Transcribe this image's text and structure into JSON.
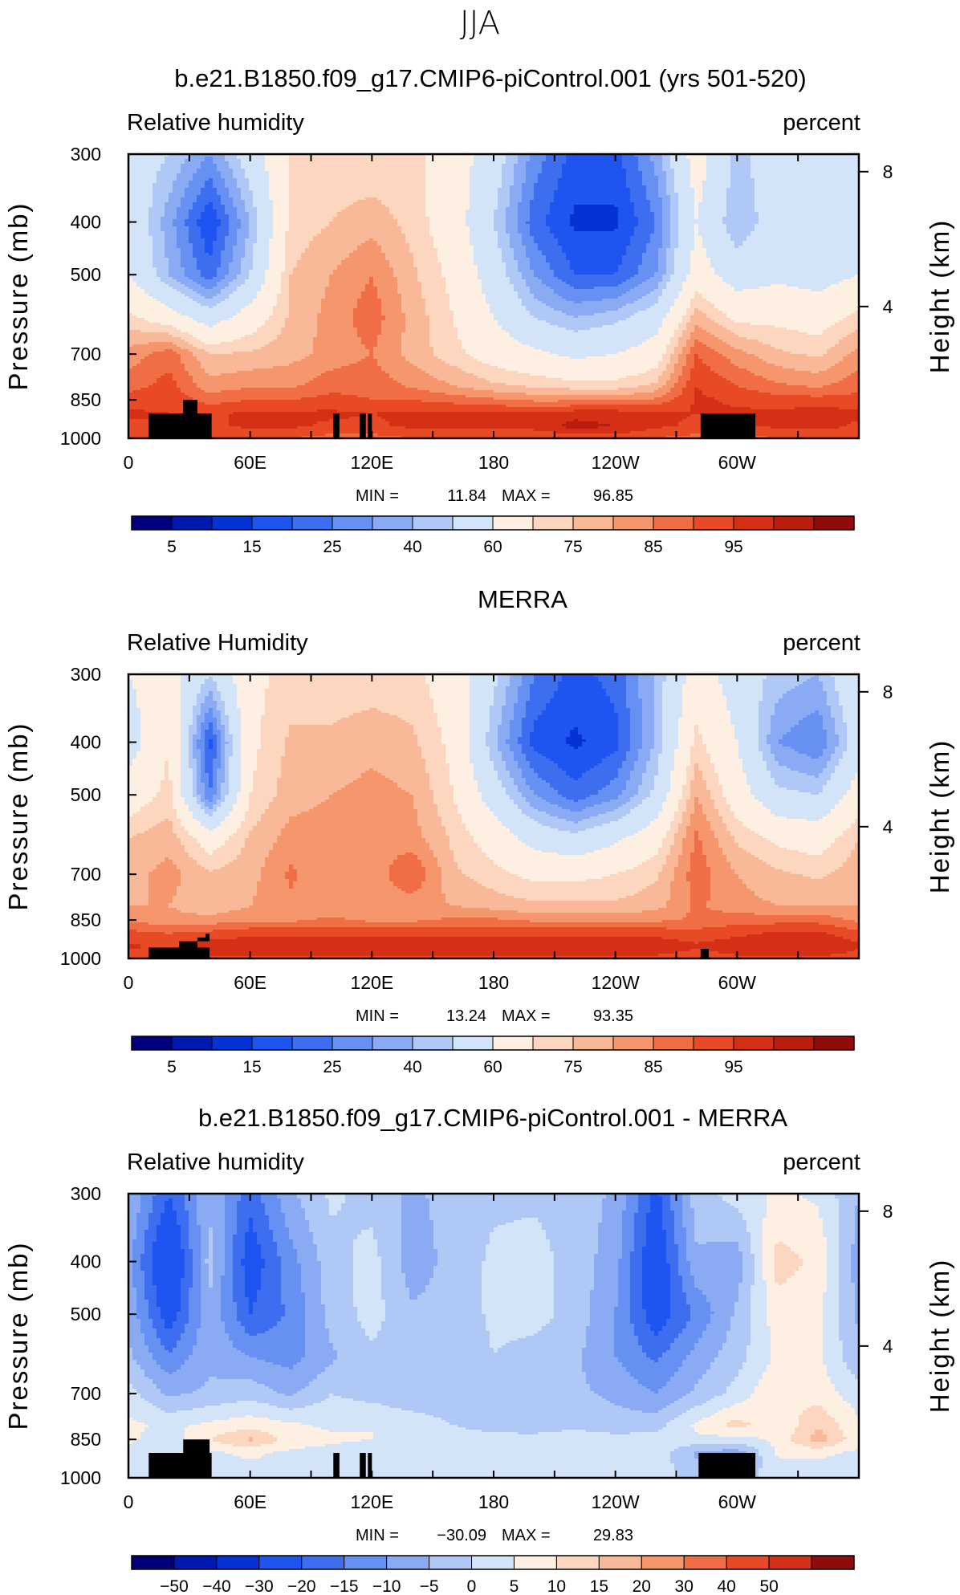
{
  "figure": {
    "title": "JJA"
  },
  "chart_data": [
    {
      "type": "heatmap",
      "title": "b.e21.B1850.f09_g17.CMIP6-piControl.001 (yrs 501-520)",
      "left_label": "Relative humidity",
      "right_label": "percent",
      "xlabel": "",
      "ylabel": "Pressure (mb)",
      "y2label": "Height (km)",
      "x_ticklabels": [
        "0",
        "60E",
        "120E",
        "180",
        "120W",
        "60W"
      ],
      "y_ticklabels": [
        "300",
        "400",
        "500",
        "700",
        "850",
        "1000"
      ],
      "y2_ticklabels": [
        "8",
        "4"
      ],
      "xlim": [
        0,
        360
      ],
      "ylim": [
        1000,
        300
      ],
      "min_label": "MIN =",
      "min_value": "11.84",
      "max_label": "MAX =",
      "max_value": "96.85",
      "colorbar_labels": [
        "5",
        "15",
        "25",
        "40",
        "60",
        "75",
        "85",
        "95"
      ],
      "colorbar_colors": [
        "#00007a",
        "#0019b0",
        "#0532d4",
        "#1e55f0",
        "#3d6ef0",
        "#6690f2",
        "#8aabf3",
        "#b0c8f6",
        "#d3e3f8",
        "#fdf0e2",
        "#fcd6bf",
        "#f9b898",
        "#f6966d",
        "#f16d45",
        "#e74a24",
        "#d53015",
        "#b91d10",
        "#8f0b0c"
      ],
      "colorbar_range": [
        0,
        100
      ],
      "contour_levels": [
        5,
        10,
        15,
        20,
        25,
        30,
        35,
        40,
        50,
        60,
        65,
        70,
        75,
        80,
        85,
        90,
        95
      ],
      "x": [
        0,
        20,
        40,
        60,
        80,
        100,
        120,
        140,
        160,
        180,
        200,
        220,
        240,
        260,
        280,
        300,
        320,
        340,
        360
      ],
      "y": [
        300,
        400,
        500,
        600,
        700,
        800,
        850,
        900,
        950,
        1000
      ],
      "z": [
        [
          45,
          40,
          30,
          45,
          60,
          62,
          60,
          62,
          55,
          45,
          28,
          18,
          18,
          32,
          55,
          38,
          45,
          42,
          45
        ],
        [
          48,
          32,
          15,
          35,
          62,
          65,
          68,
          63,
          55,
          40,
          22,
          14,
          14,
          25,
          50,
          35,
          45,
          40,
          48
        ],
        [
          50,
          35,
          22,
          40,
          65,
          70,
          75,
          66,
          58,
          45,
          30,
          20,
          20,
          30,
          55,
          45,
          48,
          46,
          50
        ],
        [
          62,
          55,
          45,
          55,
          66,
          72,
          78,
          68,
          60,
          50,
          40,
          35,
          38,
          45,
          68,
          58,
          58,
          56,
          62
        ],
        [
          72,
          78,
          65,
          66,
          68,
          72,
          75,
          68,
          62,
          56,
          52,
          48,
          50,
          55,
          80,
          72,
          66,
          64,
          72
        ],
        [
          78,
          82,
          72,
          74,
          74,
          78,
          78,
          74,
          70,
          66,
          64,
          62,
          62,
          66,
          85,
          80,
          76,
          74,
          78
        ],
        [
          82,
          84,
          78,
          80,
          80,
          82,
          80,
          80,
          78,
          76,
          74,
          74,
          74,
          76,
          86,
          84,
          82,
          82,
          82
        ],
        [
          86,
          85,
          84,
          86,
          86,
          86,
          85,
          86,
          86,
          86,
          86,
          88,
          88,
          86,
          85,
          86,
          86,
          88,
          86
        ],
        [
          84,
          84,
          84,
          86,
          86,
          84,
          84,
          86,
          86,
          87,
          87,
          92,
          90,
          86,
          84,
          84,
          86,
          87,
          84
        ],
        [
          80,
          80,
          80,
          80,
          80,
          78,
          78,
          80,
          80,
          80,
          80,
          82,
          82,
          80,
          78,
          78,
          80,
          80,
          80
        ]
      ],
      "topography": [
        [
          10,
          41,
          900,
          1000
        ],
        [
          27,
          34,
          850,
          900
        ],
        [
          101,
          104,
          900,
          1000
        ],
        [
          114,
          117,
          900,
          1000
        ],
        [
          118,
          120,
          900,
          1000
        ],
        [
          282,
          309,
          900,
          1000
        ]
      ]
    },
    {
      "type": "heatmap",
      "title": "MERRA",
      "left_label": "Relative Humidity",
      "right_label": "percent",
      "xlabel": "",
      "ylabel": "Pressure (mb)",
      "y2label": "Height (km)",
      "x_ticklabels": [
        "0",
        "60E",
        "120E",
        "180",
        "120W",
        "60W"
      ],
      "y_ticklabels": [
        "300",
        "400",
        "500",
        "700",
        "850",
        "1000"
      ],
      "y2_ticklabels": [
        "8",
        "4"
      ],
      "xlim": [
        0,
        360
      ],
      "ylim": [
        1000,
        300
      ],
      "min_label": "MIN =",
      "min_value": "13.24",
      "max_label": "MAX =",
      "max_value": "93.35",
      "colorbar_labels": [
        "5",
        "15",
        "25",
        "40",
        "60",
        "75",
        "85",
        "95"
      ],
      "colorbar_colors": [
        "#00007a",
        "#0019b0",
        "#0532d4",
        "#1e55f0",
        "#3d6ef0",
        "#6690f2",
        "#8aabf3",
        "#b0c8f6",
        "#d3e3f8",
        "#fdf0e2",
        "#fcd6bf",
        "#f9b898",
        "#f6966d",
        "#f16d45",
        "#e74a24",
        "#d53015",
        "#b91d10",
        "#8f0b0c"
      ],
      "colorbar_range": [
        0,
        100
      ],
      "contour_levels": [
        5,
        10,
        15,
        20,
        25,
        30,
        35,
        40,
        50,
        60,
        65,
        70,
        75,
        80,
        85,
        90,
        95
      ],
      "x": [
        0,
        20,
        40,
        60,
        80,
        100,
        120,
        140,
        160,
        180,
        200,
        220,
        240,
        260,
        280,
        300,
        320,
        340,
        360
      ],
      "y": [
        300,
        400,
        500,
        600,
        700,
        800,
        850,
        900,
        950,
        1000
      ],
      "z": [
        [
          50,
          55,
          40,
          58,
          62,
          62,
          62,
          62,
          55,
          42,
          25,
          18,
          22,
          36,
          55,
          45,
          38,
          35,
          50
        ],
        [
          45,
          60,
          18,
          58,
          66,
          66,
          68,
          66,
          58,
          36,
          18,
          14,
          18,
          36,
          62,
          50,
          30,
          25,
          45
        ],
        [
          55,
          62,
          25,
          60,
          68,
          70,
          72,
          70,
          60,
          45,
          30,
          22,
          28,
          42,
          70,
          55,
          42,
          40,
          55
        ],
        [
          65,
          68,
          55,
          66,
          72,
          72,
          74,
          72,
          64,
          56,
          46,
          42,
          48,
          56,
          76,
          64,
          58,
          56,
          65
        ],
        [
          68,
          72,
          66,
          68,
          76,
          70,
          72,
          80,
          66,
          62,
          58,
          58,
          60,
          64,
          78,
          70,
          66,
          64,
          68
        ],
        [
          70,
          70,
          66,
          70,
          74,
          72,
          72,
          72,
          70,
          68,
          66,
          66,
          66,
          68,
          76,
          72,
          70,
          70,
          70
        ],
        [
          74,
          72,
          72,
          74,
          74,
          76,
          74,
          74,
          76,
          76,
          74,
          74,
          74,
          74,
          76,
          78,
          78,
          78,
          74
        ],
        [
          82,
          80,
          82,
          84,
          84,
          84,
          84,
          84,
          84,
          84,
          84,
          84,
          84,
          84,
          82,
          84,
          86,
          86,
          82
        ],
        [
          86,
          84,
          88,
          88,
          88,
          88,
          88,
          88,
          88,
          88,
          88,
          88,
          88,
          88,
          86,
          88,
          90,
          90,
          86
        ],
        [
          82,
          80,
          84,
          84,
          84,
          84,
          84,
          84,
          84,
          84,
          84,
          84,
          84,
          84,
          82,
          84,
          84,
          84,
          82
        ]
      ],
      "topography": [
        [
          10,
          40,
          955,
          1000
        ],
        [
          25,
          34,
          930,
          955
        ],
        [
          34,
          40,
          915,
          930
        ],
        [
          38,
          40,
          900,
          915
        ],
        [
          282,
          286,
          960,
          1000
        ]
      ]
    },
    {
      "type": "heatmap",
      "title": "b.e21.B1850.f09_g17.CMIP6-piControl.001 - MERRA",
      "left_label": "Relative humidity",
      "right_label": "percent",
      "xlabel": "",
      "ylabel": "Pressure (mb)",
      "y2label": "Height (km)",
      "x_ticklabels": [
        "0",
        "60E",
        "120E",
        "180",
        "120W",
        "60W"
      ],
      "y_ticklabels": [
        "300",
        "400",
        "500",
        "700",
        "850",
        "1000"
      ],
      "y2_ticklabels": [
        "8",
        "4"
      ],
      "xlim": [
        0,
        360
      ],
      "ylim": [
        1000,
        300
      ],
      "min_label": "MIN =",
      "min_value": "−30.09",
      "max_label": "MAX =",
      "max_value": "29.83",
      "colorbar_labels": [
        "−50",
        "−40",
        "−30",
        "−20",
        "−15",
        "−10",
        "−5",
        "0",
        "5",
        "10",
        "15",
        "20",
        "30",
        "40",
        "50"
      ],
      "colorbar_colors": [
        "#00007a",
        "#0019b0",
        "#0532d4",
        "#1e55f0",
        "#3d6ef0",
        "#6690f2",
        "#8aabf3",
        "#b0c8f6",
        "#d3e3f8",
        "#fdf0e2",
        "#fcd6bf",
        "#f9b898",
        "#f6966d",
        "#f16d45",
        "#e74a24",
        "#d53015",
        "#8f0b0c"
      ],
      "colorbar_range": [
        -60,
        60
      ],
      "contour_levels": [
        -50,
        -40,
        -30,
        -20,
        -15,
        -10,
        -5,
        0,
        5,
        10,
        15,
        20,
        30,
        40,
        50
      ],
      "x": [
        0,
        20,
        40,
        60,
        80,
        100,
        120,
        140,
        160,
        180,
        200,
        220,
        240,
        260,
        280,
        300,
        320,
        340,
        360
      ],
      "y": [
        300,
        400,
        500,
        600,
        700,
        800,
        850,
        900,
        950,
        1000
      ],
      "z": [
        [
          -5,
          -20,
          -6,
          -18,
          -6,
          1,
          -2,
          -6,
          -3,
          -1,
          -1,
          -2,
          -6,
          -22,
          -2,
          2,
          6,
          4,
          -5
        ],
        [
          -8,
          -30,
          -3,
          -24,
          -12,
          -2,
          2,
          -8,
          -3,
          1,
          2,
          -2,
          -8,
          -26,
          -6,
          -8,
          12,
          9,
          -8
        ],
        [
          -6,
          -24,
          -6,
          -20,
          -14,
          -3,
          2,
          -4,
          -3,
          1,
          2,
          -2,
          -10,
          -24,
          -14,
          -4,
          8,
          6,
          -6
        ],
        [
          -4,
          -14,
          -6,
          -10,
          -12,
          -6,
          -1,
          -4,
          -4,
          0,
          -2,
          -4,
          -10,
          -16,
          -8,
          -2,
          6,
          6,
          -4
        ],
        [
          2,
          -6,
          -4,
          -2,
          -6,
          0,
          -2,
          -4,
          -3,
          -4,
          -4,
          -4,
          -6,
          -10,
          -4,
          2,
          10,
          8,
          2
        ],
        [
          6,
          4,
          6,
          8,
          6,
          4,
          5,
          3,
          0,
          -2,
          -3,
          -2,
          -3,
          -2,
          6,
          12,
          6,
          14,
          6
        ],
        [
          6,
          2,
          10,
          16,
          8,
          6,
          5,
          2,
          2,
          2,
          2,
          4,
          2,
          2,
          4,
          3,
          6,
          18,
          6
        ],
        [
          4,
          2,
          4,
          6,
          4,
          3,
          2,
          3,
          3,
          3,
          3,
          3,
          3,
          3,
          -6,
          -8,
          6,
          6,
          4
        ],
        [
          4,
          2,
          4,
          4,
          4,
          3,
          3,
          3,
          3,
          3,
          3,
          3,
          3,
          3,
          -4,
          -6,
          4,
          4,
          4
        ],
        [
          4,
          2,
          4,
          4,
          4,
          3,
          3,
          3,
          3,
          3,
          3,
          3,
          3,
          3,
          -2,
          -4,
          4,
          4,
          4
        ]
      ],
      "topography": [
        [
          10,
          41,
          900,
          1000
        ],
        [
          27,
          40,
          850,
          900
        ],
        [
          101,
          104,
          900,
          1000
        ],
        [
          114,
          117,
          900,
          1000
        ],
        [
          118,
          120,
          900,
          1000
        ],
        [
          281,
          309,
          900,
          1000
        ]
      ]
    }
  ]
}
